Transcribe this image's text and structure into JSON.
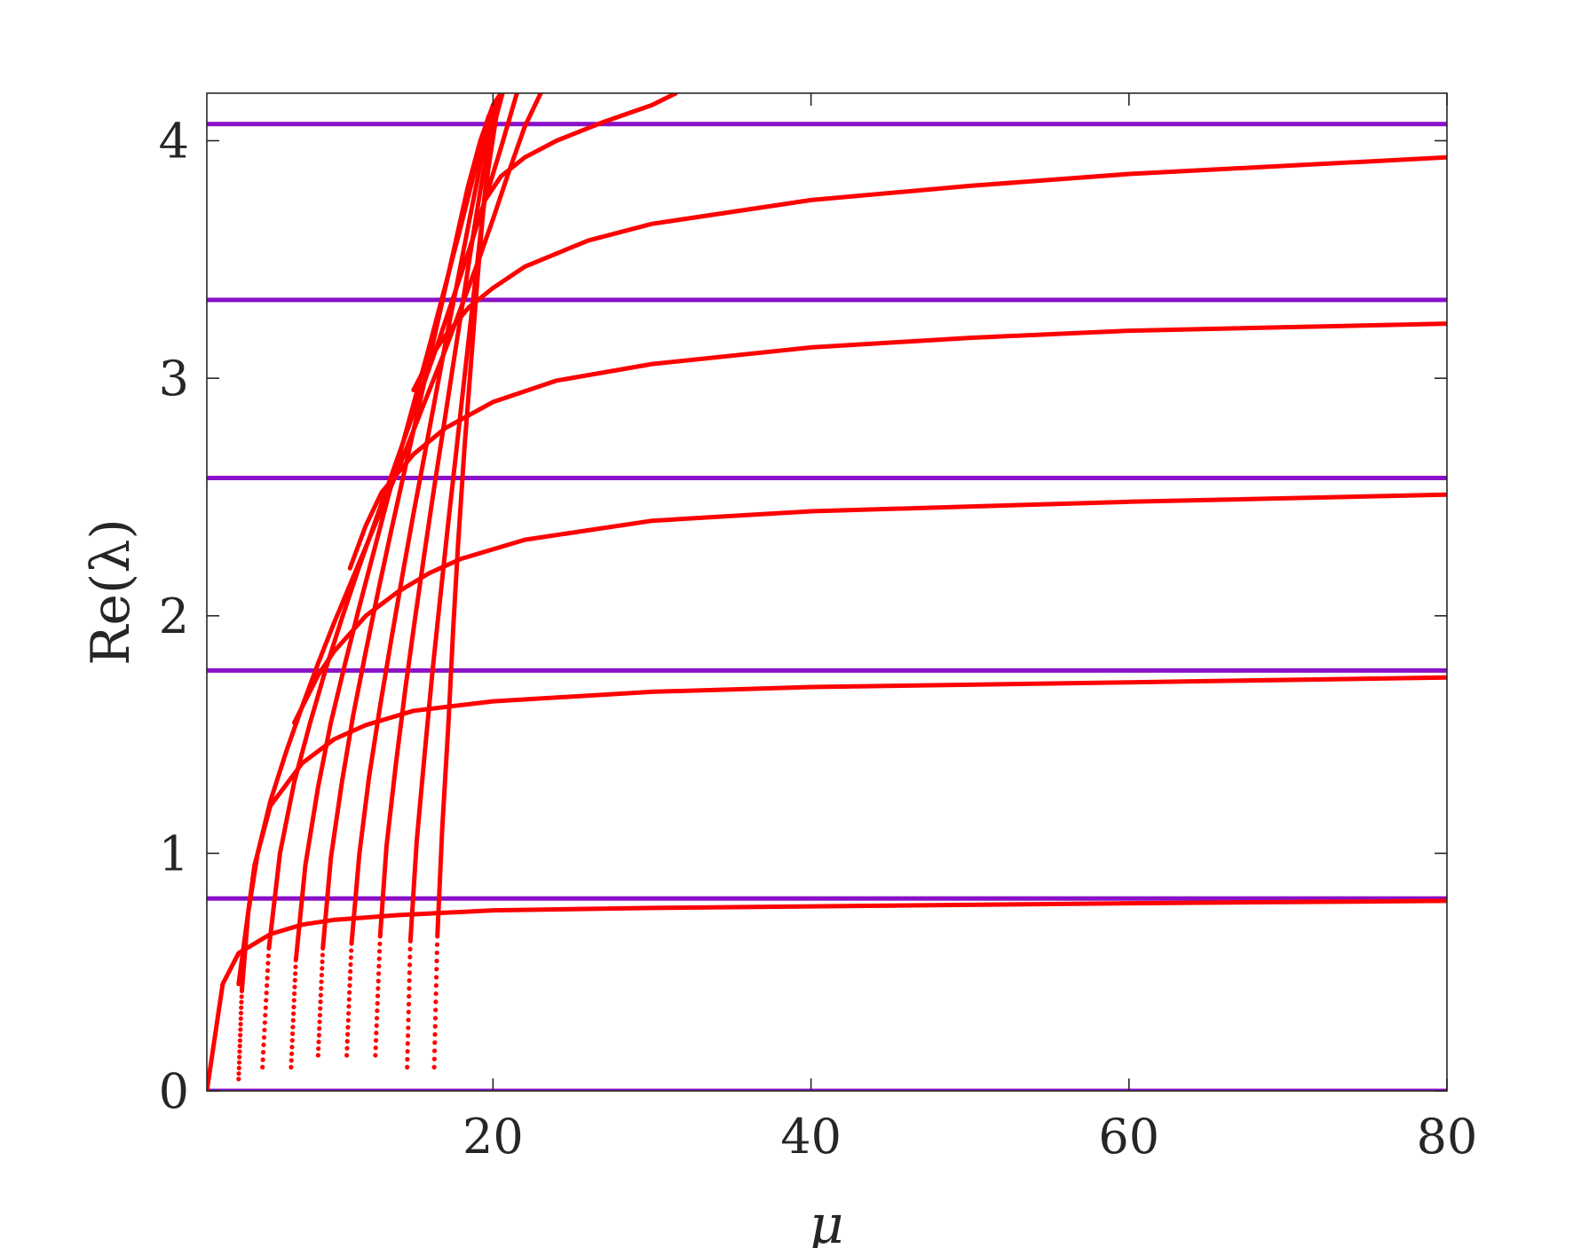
{
  "chart_data": {
    "type": "line",
    "title": "",
    "xlabel": "μ",
    "ylabel": "Re(λ)",
    "xlim": [
      2,
      80
    ],
    "ylim": [
      0,
      4.2
    ],
    "x_ticks": [
      20,
      40,
      60,
      80
    ],
    "y_ticks": [
      0,
      1,
      2,
      3,
      4
    ],
    "grid": false,
    "legend": "none",
    "colors": {
      "curves": "#ff0000",
      "asymptotes": "#8a0fc8",
      "axes": "#262626"
    },
    "asymptotes": [
      0.0,
      0.81,
      1.77,
      2.58,
      3.33,
      4.07
    ],
    "saturating_branches": [
      {
        "x": [
          2,
          3,
          4,
          6,
          8,
          10,
          14,
          20,
          30,
          45,
          60,
          80
        ],
        "y": [
          0.0,
          0.45,
          0.58,
          0.66,
          0.7,
          0.72,
          0.74,
          0.76,
          0.77,
          0.78,
          0.79,
          0.8
        ]
      },
      {
        "x": [
          4,
          5,
          6,
          8,
          10,
          12,
          15,
          20,
          30,
          40,
          60,
          80
        ],
        "y": [
          0.45,
          0.95,
          1.2,
          1.38,
          1.48,
          1.54,
          1.6,
          1.64,
          1.68,
          1.7,
          1.72,
          1.74
        ]
      },
      {
        "x": [
          7.5,
          9,
          10,
          12,
          14,
          16,
          18,
          22,
          30,
          40,
          60,
          80
        ],
        "y": [
          1.55,
          1.75,
          1.85,
          2.0,
          2.1,
          2.18,
          2.24,
          2.32,
          2.4,
          2.44,
          2.48,
          2.51
        ]
      },
      {
        "x": [
          11,
          12,
          13,
          15,
          17,
          20,
          24,
          30,
          40,
          50,
          60,
          80
        ],
        "y": [
          2.2,
          2.38,
          2.52,
          2.68,
          2.79,
          2.9,
          2.99,
          3.06,
          3.13,
          3.17,
          3.2,
          3.23
        ]
      },
      {
        "x": [
          15,
          16,
          17,
          18.5,
          20,
          22,
          26,
          30,
          40,
          50,
          60,
          80
        ],
        "y": [
          2.95,
          3.08,
          3.18,
          3.3,
          3.38,
          3.47,
          3.58,
          3.65,
          3.75,
          3.81,
          3.86,
          3.93
        ]
      },
      {
        "x": [
          19.5,
          20.5,
          22,
          24,
          27,
          30,
          31.5
        ],
        "y": [
          3.75,
          3.85,
          3.93,
          4.0,
          4.08,
          4.15,
          4.2
        ]
      }
    ],
    "steep_branches": [
      {
        "x": [
          4.0,
          4.2,
          4.6,
          5.2,
          6.0,
          7.0,
          8.0,
          9.0,
          10.0,
          11.0,
          12.0,
          13.0,
          14.0,
          15.0,
          16.0,
          17.0,
          18.0,
          19.0,
          20.0,
          21.0,
          22.0,
          23.0
        ],
        "y": [
          0.05,
          0.42,
          0.75,
          1.0,
          1.22,
          1.43,
          1.62,
          1.8,
          1.97,
          2.13,
          2.29,
          2.45,
          2.61,
          2.78,
          2.95,
          3.12,
          3.3,
          3.48,
          3.67,
          3.87,
          4.06,
          4.2
        ]
      },
      {
        "x": [
          5.5,
          5.9,
          6.6,
          7.5,
          8.5,
          9.5,
          10.5,
          11.5,
          12.5,
          13.5,
          14.5,
          15.5,
          16.5,
          17.5,
          18.5,
          19.5,
          20.5,
          21.5
        ],
        "y": [
          0.1,
          0.6,
          1.0,
          1.3,
          1.55,
          1.78,
          1.99,
          2.19,
          2.38,
          2.57,
          2.76,
          2.95,
          3.14,
          3.34,
          3.54,
          3.75,
          3.97,
          4.2
        ]
      },
      {
        "x": [
          7.3,
          7.6,
          8.2,
          9.0,
          9.8,
          10.7,
          11.6,
          12.5,
          13.4,
          14.3,
          15.2,
          16.1,
          17.0,
          17.9,
          18.8,
          19.7,
          20.6
        ],
        "y": [
          0.1,
          0.55,
          0.95,
          1.28,
          1.55,
          1.8,
          2.04,
          2.27,
          2.5,
          2.72,
          2.94,
          3.16,
          3.39,
          3.62,
          3.86,
          4.1,
          4.2
        ]
      },
      {
        "x": [
          9.0,
          9.3,
          9.8,
          10.5,
          11.2,
          12.0,
          12.8,
          13.6,
          14.4,
          15.2,
          16.0,
          16.8,
          17.6,
          18.4,
          19.2,
          20.0,
          20.5
        ],
        "y": [
          0.15,
          0.6,
          0.98,
          1.3,
          1.58,
          1.85,
          2.11,
          2.36,
          2.6,
          2.84,
          3.08,
          3.32,
          3.56,
          3.8,
          4.0,
          4.15,
          4.2
        ]
      },
      {
        "x": [
          10.8,
          11.1,
          11.6,
          12.2,
          12.9,
          13.6,
          14.3,
          15.0,
          15.7,
          16.4,
          17.1,
          17.8,
          18.5,
          19.2,
          19.9,
          20.6
        ],
        "y": [
          0.15,
          0.62,
          1.0,
          1.32,
          1.62,
          1.9,
          2.17,
          2.43,
          2.68,
          2.93,
          3.18,
          3.42,
          3.66,
          3.9,
          4.1,
          4.2
        ]
      },
      {
        "x": [
          12.6,
          12.9,
          13.3,
          13.9,
          14.5,
          15.1,
          15.7,
          16.3,
          16.9,
          17.5,
          18.1,
          18.7,
          19.3,
          19.9,
          20.5
        ],
        "y": [
          0.15,
          0.65,
          1.03,
          1.38,
          1.7,
          1.99,
          2.27,
          2.54,
          2.8,
          3.06,
          3.32,
          3.58,
          3.83,
          4.05,
          4.2
        ]
      },
      {
        "x": [
          14.6,
          14.8,
          15.2,
          15.7,
          16.2,
          16.7,
          17.2,
          17.7,
          18.2,
          18.7,
          19.2,
          19.7,
          20.2,
          20.6
        ],
        "y": [
          0.1,
          0.63,
          1.05,
          1.42,
          1.77,
          2.09,
          2.4,
          2.7,
          3.0,
          3.3,
          3.6,
          3.88,
          4.1,
          4.2
        ]
      },
      {
        "x": [
          16.3,
          16.5,
          16.8,
          17.2,
          17.5,
          17.8,
          18.2,
          18.6,
          19.0,
          19.4,
          19.8,
          20.2,
          20.6
        ],
        "y": [
          0.1,
          0.65,
          1.1,
          1.55,
          1.95,
          2.3,
          2.7,
          3.05,
          3.4,
          3.72,
          3.98,
          4.12,
          4.2
        ]
      }
    ]
  }
}
